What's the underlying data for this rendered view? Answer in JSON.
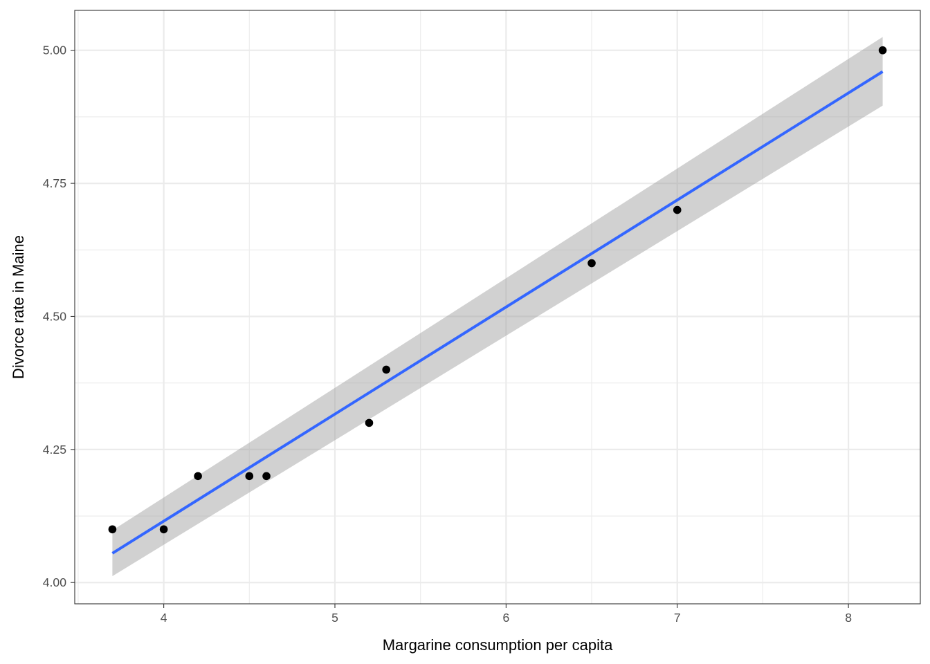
{
  "chart_data": {
    "type": "scatter",
    "title": "",
    "xlabel": "Margarine consumption per capita",
    "ylabel": "Divorce rate in Maine",
    "xlim": [
      3.48,
      8.42
    ],
    "ylim": [
      3.96,
      5.075
    ],
    "x_ticks": [
      4,
      5,
      6,
      7,
      8
    ],
    "x_tick_labels": [
      "4",
      "5",
      "6",
      "7",
      "8"
    ],
    "y_ticks": [
      4.0,
      4.25,
      4.5,
      4.75,
      5.0
    ],
    "y_tick_labels": [
      "4.00",
      "4.25",
      "4.50",
      "4.75",
      "5.00"
    ],
    "grid": true,
    "points": {
      "x": [
        3.7,
        4.0,
        4.2,
        4.5,
        4.6,
        5.2,
        5.3,
        6.5,
        7.0,
        8.2
      ],
      "y": [
        4.1,
        4.1,
        4.2,
        4.2,
        4.2,
        4.3,
        4.4,
        4.6,
        4.7,
        5.0
      ]
    },
    "fit_line": {
      "method": "linear regression",
      "x": [
        3.7,
        8.2
      ],
      "y": [
        4.055,
        4.96
      ]
    },
    "confidence_band": {
      "x": [
        3.7,
        8.2
      ],
      "lower": [
        4.012,
        4.896
      ],
      "upper": [
        4.098,
        5.025
      ]
    },
    "colors": {
      "points": "#000000",
      "fit_line": "#3366ff",
      "band": "#999999",
      "grid": "#ebebeb",
      "panel_border": "#333333",
      "tick_text": "#4d4d4d"
    }
  }
}
